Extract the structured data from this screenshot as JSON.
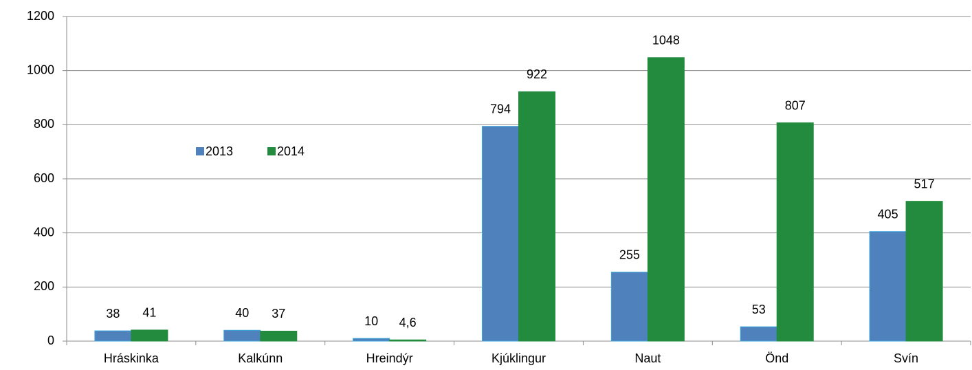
{
  "chart_data": {
    "type": "bar",
    "categories": [
      "Hráskinka",
      "Kalkúnn",
      "Hreindýr",
      "Kjúklingur",
      "Naut",
      "Önd",
      "Svín"
    ],
    "series": [
      {
        "name": "2013",
        "color": "#4f81bd",
        "values": [
          38,
          40,
          10,
          794,
          255,
          53,
          405
        ]
      },
      {
        "name": "2014",
        "color": "#228b3e",
        "values": [
          41,
          37,
          4.6,
          922,
          1048,
          807,
          517
        ],
        "value_labels": [
          "41",
          "37",
          "4,6",
          "922",
          "1048",
          "807",
          "517"
        ]
      }
    ],
    "ylim": [
      0,
      1200
    ],
    "yticks": [
      0,
      200,
      400,
      600,
      800,
      1000,
      1200
    ],
    "grid": true
  }
}
